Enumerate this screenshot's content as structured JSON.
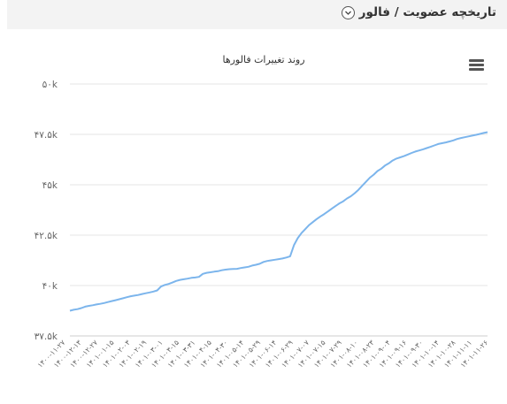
{
  "header": {
    "title": "تاریخچه عضویت / فالور",
    "collapse_icon": "chevron-down-icon"
  },
  "toolbar": {
    "menu_icon": "hamburger-menu-icon"
  },
  "colors": {
    "line": "#7cb5ec",
    "grid": "#e6e6e6",
    "header_bg": "#f3f3f3"
  },
  "chart_data": {
    "type": "line",
    "title": "روند تغییرات فالورها",
    "xlabel": "",
    "ylabel": "",
    "ylim": [
      37500,
      50000
    ],
    "yticks": [
      37500,
      40000,
      42500,
      45000,
      47500,
      50000
    ],
    "ytick_labels": [
      "۳۷.۵k",
      "۴۰k",
      "۴۲.۵k",
      "۴۵k",
      "۴۷.۵k",
      "۵۰k"
    ],
    "x_labels": [
      "۱۴۰۰-۱۱-۲۷",
      "۱۴۰۰-۱۲-۱۳",
      "۱۴۰۰-۱۲-۲۷",
      "۱۴۰۱-۰۱-۱۵",
      "۱۴۰۱-۰۲-۰۳",
      "۱۴۰۱-۰۲-۱۹",
      "۱۴۰۱-۰۳-۰۱",
      "۱۴۰۱-۰۳-۱۵",
      "۱۴۰۱-۰۳-۳۱",
      "۱۴۰۱-۰۴-۱۵",
      "۱۴۰۱-۰۴-۳۰",
      "۱۴۰۱-۰۵-۱۴",
      "۱۴۰۱-۰۵-۲۹",
      "۱۴۰۱-۰۶-۱۴",
      "۱۴۰۱-۰۶-۲۹",
      "۱۴۰۱-۰۷-۰۷",
      "۱۴۰۱-۰۷-۱۵",
      "۱۴۰۱-۰۷-۲۹",
      "۱۴۰۱-۰۸-۱۰",
      "۱۴۰۱-۰۸-۲۳",
      "۱۴۰۱-۰۹-۰۴",
      "۱۴۰۱-۰۹-۱۶",
      "۱۴۰۱-۰۹-۳۰",
      "۱۴۰۱-۱۰-۱۴",
      "۱۴۰۱-۱۰-۲۸",
      "۱۴۰۱-۱۱-۱۱",
      "۱۴۰۱-۱۱-۲۶"
    ],
    "series": [
      {
        "values": [
          38750,
          38800,
          38830,
          38880,
          38950,
          38990,
          39020,
          39060,
          39090,
          39130,
          39180,
          39230,
          39270,
          39320,
          39370,
          39420,
          39470,
          39500,
          39530,
          39580,
          39620,
          39660,
          39700,
          39760,
          39950,
          40030,
          40080,
          40150,
          40230,
          40280,
          40310,
          40340,
          40380,
          40400,
          40430,
          40580,
          40630,
          40660,
          40690,
          40710,
          40760,
          40790,
          40810,
          40820,
          40830,
          40870,
          40900,
          40930,
          40990,
          41030,
          41080,
          41170,
          41220,
          41250,
          41280,
          41310,
          41340,
          41390,
          41450,
          42000,
          42350,
          42600,
          42800,
          43000,
          43150,
          43300,
          43430,
          43550,
          43680,
          43820,
          43950,
          44080,
          44180,
          44320,
          44430,
          44580,
          44750,
          44950,
          45150,
          45350,
          45500,
          45680,
          45800,
          45950,
          46060,
          46200,
          46300,
          46360,
          46420,
          46500,
          46580,
          46650,
          46700,
          46760,
          46820,
          46880,
          46950,
          47020,
          47060,
          47100,
          47150,
          47200,
          47270,
          47320,
          47360,
          47400,
          47440,
          47480,
          47520,
          47570,
          47610
        ]
      }
    ]
  }
}
